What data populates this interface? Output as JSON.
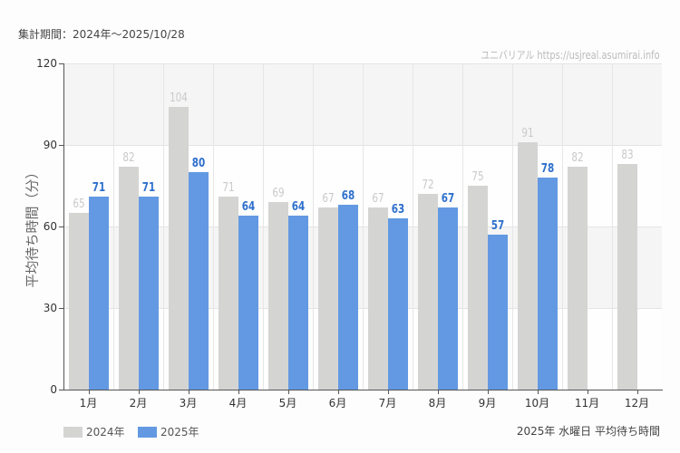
{
  "header": {
    "period": "集計期間：2024年～2025/10/28",
    "credit": "ユニバリアル  https://usjreal.asumirai.info"
  },
  "axes": {
    "ylabel": "平均待ち時間（分）",
    "yticks": [
      "0",
      "30",
      "60",
      "90",
      "120"
    ],
    "xticks": [
      "1月",
      "2月",
      "3月",
      "4月",
      "5月",
      "6月",
      "7月",
      "8月",
      "9月",
      "10月",
      "11月",
      "12月"
    ]
  },
  "legend": {
    "items": [
      {
        "label": "2024年",
        "color": "#d4d5d3"
      },
      {
        "label": "2025年",
        "color": "#6399e2"
      }
    ]
  },
  "caption": "2025年 水曜日 平均待ち時間",
  "chart_data": {
    "type": "bar",
    "title": "2025年 水曜日 平均待ち時間",
    "subtitle": "集計期間：2024年～2025/10/28",
    "xlabel": "",
    "ylabel": "平均待ち時間（分）",
    "ylim": [
      0,
      120
    ],
    "yticks": [
      0,
      30,
      60,
      90,
      120
    ],
    "grid": true,
    "legend_position": "bottom-left",
    "categories": [
      "1月",
      "2月",
      "3月",
      "4月",
      "5月",
      "6月",
      "7月",
      "8月",
      "9月",
      "10月",
      "11月",
      "12月"
    ],
    "series": [
      {
        "name": "2024年",
        "color": "#d4d5d3",
        "values": [
          65,
          82,
          104,
          71,
          69,
          67,
          67,
          72,
          75,
          91,
          82,
          83
        ]
      },
      {
        "name": "2025年",
        "color": "#6399e2",
        "values": [
          71,
          71,
          80,
          64,
          64,
          68,
          63,
          67,
          57,
          78,
          null,
          null
        ]
      }
    ]
  }
}
